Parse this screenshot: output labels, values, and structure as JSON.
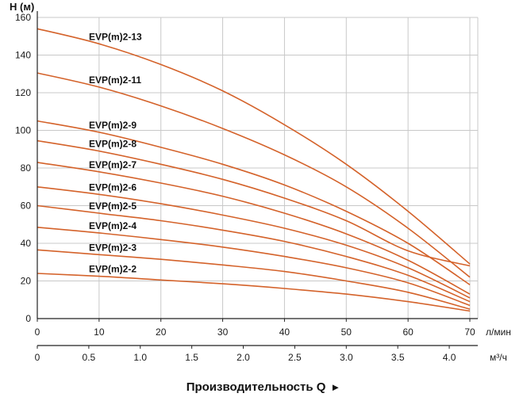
{
  "chart_data": {
    "type": "line",
    "ylabel": "H (м)",
    "xlabel": "Производительность Q",
    "xlabel_arrow": "►",
    "ylim": [
      0,
      160
    ],
    "yticks": [
      0,
      20,
      40,
      60,
      80,
      100,
      120,
      140,
      160
    ],
    "x_primary": {
      "unit": "л/мин",
      "range": [
        0,
        70
      ],
      "ticks": [
        0,
        10,
        20,
        30,
        40,
        50,
        60,
        70
      ]
    },
    "x_secondary": {
      "unit": "м³/ч",
      "range": [
        0,
        4.2
      ],
      "ticks": [
        "0",
        "0.5",
        "1.0",
        "1.5",
        "2.0",
        "2.5",
        "3.0",
        "3.5",
        "4.0"
      ]
    },
    "grid": true,
    "color": "#d4622a",
    "x": [
      0,
      10,
      20,
      30,
      40,
      50,
      60,
      70
    ],
    "series": [
      {
        "name": "EVP(m)2-13",
        "values": [
          154,
          146,
          135,
          121,
          103,
          82,
          57,
          29
        ]
      },
      {
        "name": "EVP(m)2-11",
        "values": [
          130.5,
          123,
          113,
          101,
          87,
          70,
          48,
          22
        ]
      },
      {
        "name": "EVP(m)2-9",
        "values": [
          105,
          99,
          91,
          82,
          71,
          57,
          40,
          18
        ]
      },
      {
        "name": "EVP(m)2-8",
        "values": [
          94.5,
          89,
          82,
          74,
          64,
          52,
          36,
          28
        ]
      },
      {
        "name": "EVP(m)2-7",
        "values": [
          83,
          78,
          72,
          65,
          56,
          45,
          31,
          13
        ]
      },
      {
        "name": "EVP(m)2-6",
        "values": [
          70,
          66,
          61,
          55,
          48,
          39,
          27,
          11
        ]
      },
      {
        "name": "EVP(m)2-5",
        "values": [
          60,
          56,
          52,
          47,
          41,
          33,
          23,
          9
        ]
      },
      {
        "name": "EVP(m)2-4",
        "values": [
          48.5,
          45.5,
          42,
          38,
          33,
          27,
          19,
          7
        ]
      },
      {
        "name": "EVP(m)2-3",
        "values": [
          36.5,
          34,
          31.5,
          28.5,
          25,
          20,
          14,
          5
        ]
      },
      {
        "name": "EVP(m)2-2",
        "values": [
          24,
          22.5,
          20.5,
          18.5,
          16,
          13,
          9,
          4
        ]
      }
    ]
  }
}
